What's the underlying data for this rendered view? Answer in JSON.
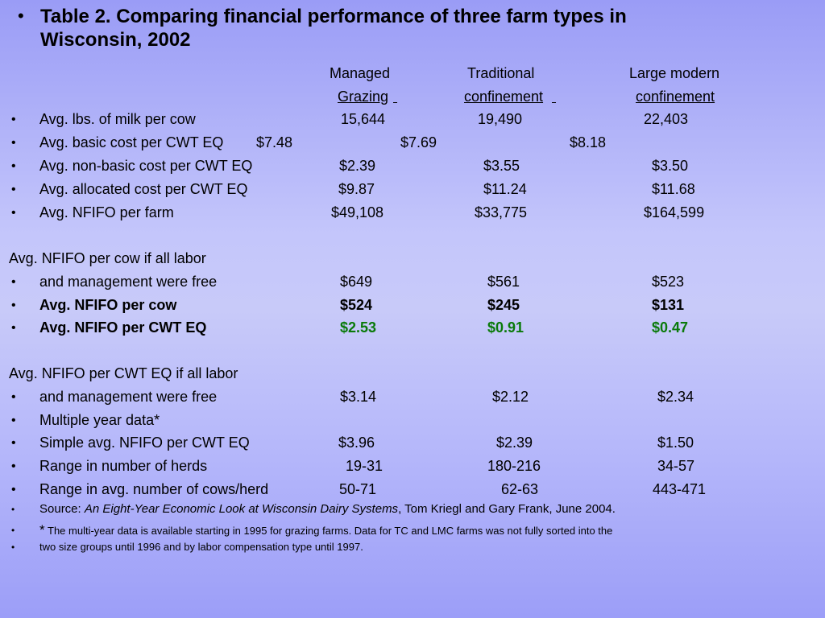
{
  "title": "Table 2. Comparing financial performance of three farm types in Wisconsin, 2002",
  "title_line1": "Table 2. Comparing financial performance of three farm types in",
  "title_line2": "Wisconsin, 2002",
  "bullet_char": "•",
  "headers": {
    "col1_line1": "Managed",
    "col1_line2": "Grazing",
    "col2_line1": "Traditional",
    "col2_line2": "confinement",
    "col3_line1": "Large modern",
    "col3_line2": "confinement"
  },
  "rows": [
    {
      "label": "Avg. lbs. of milk per cow",
      "v1": "15,644",
      "v2": "19,490",
      "v3": "22,403"
    },
    {
      "label": "Avg. basic cost per CWT EQ",
      "v1": "$7.48",
      "v2": "$7.69",
      "v3": "$8.18"
    },
    {
      "label": "Avg. non-basic cost per CWT EQ",
      "v1": "$2.39",
      "v2": "$3.55",
      "v3": "$3.50"
    },
    {
      "label": "Avg. allocated cost per CWT EQ",
      "v1": "$9.87",
      "v2": "$11.24",
      "v3": "$11.68"
    },
    {
      "label": "Avg. NFIFO per farm",
      "v1": "$49,108",
      "v2": "$33,775",
      "v3": "$164,599"
    }
  ],
  "section1_heading": "Avg. NFIFO per cow if all labor",
  "section1_rows": [
    {
      "label": "and management were free",
      "v1": "$649",
      "v2": "$561",
      "v3": "$523"
    },
    {
      "label": "Avg. NFIFO per cow",
      "v1": "$524",
      "v2": "$245",
      "v3": "$131"
    },
    {
      "label": "Avg. NFIFO per CWT EQ",
      "v1": "$2.53",
      "v2": "$0.91",
      "v3": "$0.47"
    }
  ],
  "section2_heading": "Avg. NFIFO per CWT EQ if all labor",
  "section2_rows": [
    {
      "label": "and management were free",
      "v1": "$3.14",
      "v2": "$2.12",
      "v3": "$2.34"
    },
    {
      "label": "Multiple year data*"
    },
    {
      "label": "Simple avg. NFIFO per CWT EQ",
      "v1": "$3.96",
      "v2": "$2.39",
      "v3": "$1.50"
    },
    {
      "label": "Range in number of herds",
      "v1": "19-31",
      "v2": "180-216",
      "v3": "34-57"
    },
    {
      "label": "Range in avg. number of cows/herd",
      "v1": "50-71",
      "v2": "62-63",
      "v3": "443-471"
    }
  ],
  "source": {
    "prefix": "Source: ",
    "italic": "An Eight-Year Economic Look at Wisconsin Dairy Systems",
    "suffix": ", Tom Kriegl and Gary Frank, June 2004."
  },
  "footnote": {
    "star": "*",
    "line1": " The multi-year data is available starting in 1995 for grazing farms. Data for TC and LMC farms was not fully sorted into the",
    "line2": "two size groups until 1996 and by labor compensation type until 1997."
  },
  "colors": {
    "highlight_green": "#0a7a0a",
    "background_top": "#9a9cf6",
    "background_mid": "#c8caf9"
  }
}
